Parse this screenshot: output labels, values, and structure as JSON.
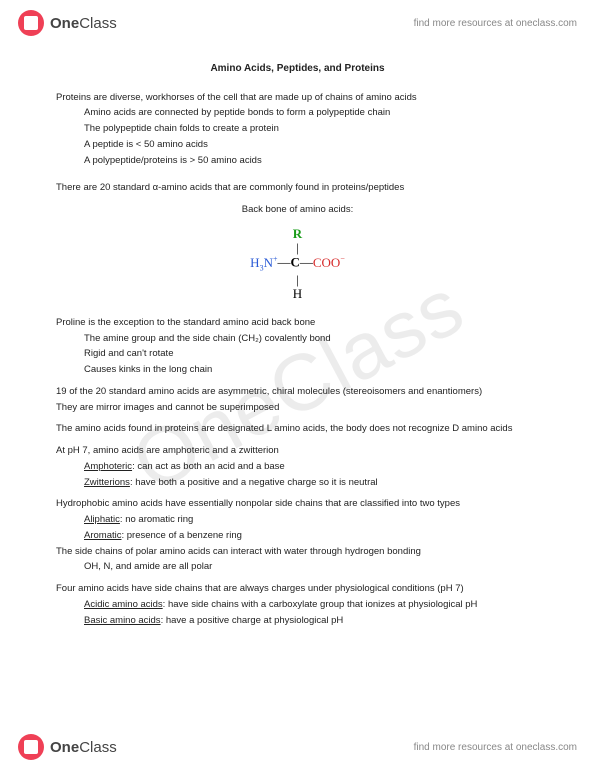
{
  "header": {
    "logo_one": "One",
    "logo_class": "Class",
    "link": "find more resources at oneclass.com"
  },
  "footer": {
    "logo_one": "One",
    "logo_class": "Class",
    "link": "find more resources at oneclass.com"
  },
  "watermark": "OneClass",
  "doc": {
    "title": "Amino Acids, Peptides, and Proteins",
    "intro": "Proteins are diverse, workhorses of the cell that are made up of chains of amino acids",
    "intro_sub": [
      "Amino acids are connected by peptide bonds to form a polypeptide chain",
      "The polypeptide chain folds to create a protein",
      "A peptide is < 50 amino acids",
      "A polypeptide/proteins is > 50 amino acids"
    ],
    "standard": "There are 20 standard α-amino acids that are commonly found in proteins/peptides",
    "backbone_label": "Back bone of amino acids:",
    "diagram": {
      "r": "R",
      "n_prefix": "H",
      "n_sub": "3",
      "n": "N",
      "n_sup": "+",
      "c": "C",
      "coo": "COO",
      "coo_sup": "−",
      "h": "H"
    },
    "proline_head": "Proline is the exception to the standard amino acid back bone",
    "proline_sub": [
      "The amine group and the side chain (CH₂) covalently bond",
      "Rigid and can't rotate",
      "Causes kinks in the long chain"
    ],
    "chiral1": "19 of the 20 standard amino acids are asymmetric, chiral molecules (stereoisomers and enantiomers)",
    "chiral2": "They are mirror images and cannot be superimposed",
    "l_amino": "The amino acids found in proteins are designated L amino acids, the body does not recognize D amino acids",
    "ph7_head": "At pH 7, amino acids are amphoteric and a zwitterion",
    "amphoteric_label": "Amphoteric",
    "amphoteric_def": ": can act as both an acid and a base",
    "zwitterion_label": "Zwitterions",
    "zwitterion_def": ": have both a positive and a negative charge so it is neutral",
    "hydrophobic_head": "Hydrophobic amino acids have essentially nonpolar side chains that are classified into two types",
    "aliphatic_label": "Aliphatic",
    "aliphatic_def": ": no aromatic ring",
    "aromatic_label": "Aromatic",
    "aromatic_def": ": presence of a benzene ring",
    "polar_head": "The side chains of polar amino acids can interact with water through hydrogen bonding",
    "polar_sub": "OH, N, and amide are all polar",
    "charged_head": "Four amino acids have side chains that are always charges under physiological conditions (pH 7)",
    "acidic_label": "Acidic amino acids",
    "acidic_def": ": have side chains with a carboxylate group that ionizes at physiological pH",
    "basic_label": "Basic amino acids",
    "basic_def": ": have a positive charge at physiological pH"
  }
}
